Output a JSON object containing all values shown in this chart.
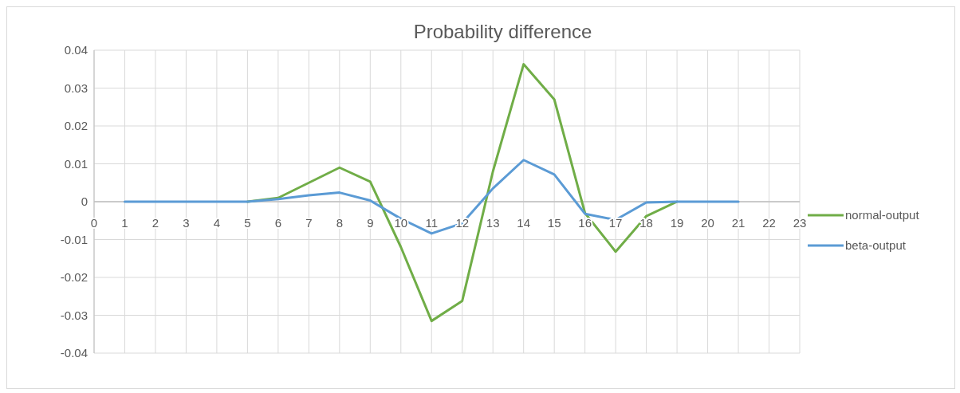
{
  "chart_data": {
    "type": "line",
    "title": "Probability difference",
    "x": [
      1,
      2,
      3,
      4,
      5,
      6,
      7,
      8,
      9,
      10,
      11,
      12,
      13,
      14,
      15,
      16,
      17,
      18,
      19,
      20,
      21
    ],
    "series": [
      {
        "name": "normal-output",
        "color": "#70ad47",
        "x": [
          5,
          6,
          7,
          8,
          9,
          10,
          11,
          12,
          13,
          14,
          15,
          16,
          17,
          18,
          19
        ],
        "values": [
          0,
          0.001,
          0.005,
          0.009,
          0.0053,
          -0.012,
          -0.0315,
          -0.0262,
          0.008,
          0.0363,
          0.027,
          -0.003,
          -0.0132,
          -0.0038,
          0
        ]
      },
      {
        "name": "beta-output",
        "color": "#5b9bd5",
        "values": [
          0,
          0,
          0,
          0,
          0,
          0.0007,
          0.0017,
          0.0024,
          0.0003,
          -0.0045,
          -0.0084,
          -0.0057,
          0.0035,
          0.011,
          0.0072,
          -0.0032,
          -0.0048,
          -0.0002,
          0,
          0,
          0
        ]
      }
    ],
    "xlim": [
      0,
      23
    ],
    "xticks": [
      0,
      1,
      2,
      3,
      4,
      5,
      6,
      7,
      8,
      9,
      10,
      11,
      12,
      13,
      14,
      15,
      16,
      17,
      18,
      19,
      20,
      21,
      22,
      23
    ],
    "ylim": [
      -0.04,
      0.04
    ],
    "yticks": [
      {
        "value": -0.04,
        "label": "-0.04"
      },
      {
        "value": -0.03,
        "label": "-0.03"
      },
      {
        "value": -0.02,
        "label": "-0.02"
      },
      {
        "value": -0.01,
        "label": "-0.01"
      },
      0,
      {
        "value": 0.01,
        "label": "0.01"
      },
      {
        "value": 0.02,
        "label": "0.02"
      },
      {
        "value": 0.03,
        "label": "0.03"
      },
      {
        "value": 0.04,
        "label": "0.04"
      }
    ],
    "grid": true,
    "legend": "right",
    "marker": "none",
    "line_style": "solid"
  }
}
